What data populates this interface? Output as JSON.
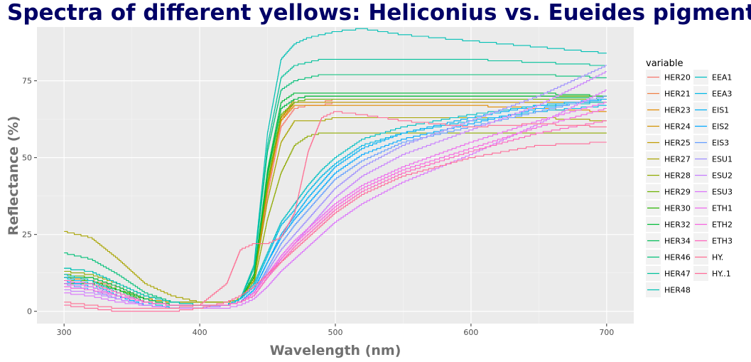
{
  "title": "Spectra of different yellows: Heliconius vs. Eueides pigments",
  "chart_data": {
    "type": "line",
    "xlabel": "Wavelength (nm)",
    "ylabel": "Reflectance (%)",
    "xlim": [
      280,
      720
    ],
    "ylim": [
      -4,
      92.5
    ],
    "x_ticks": [
      300,
      400,
      500,
      600,
      700
    ],
    "y_ticks": [
      0,
      25,
      50,
      75
    ],
    "grid": true,
    "legend": {
      "title": "variable",
      "position": "right",
      "columns": 2
    },
    "x": [
      300,
      320,
      340,
      360,
      380,
      400,
      420,
      430,
      440,
      450,
      460,
      470,
      480,
      490,
      500,
      520,
      550,
      600,
      650,
      700
    ],
    "series": [
      {
        "name": "HER20",
        "color": "#F8766D",
        "values": [
          11,
          10,
          8,
          4,
          3,
          3,
          3,
          4,
          10,
          38,
          60,
          66,
          67,
          67,
          68,
          68,
          68,
          68,
          68,
          68
        ]
      },
      {
        "name": "HER21",
        "color": "#EF7F46",
        "values": [
          9,
          9,
          7,
          4,
          3,
          3,
          3,
          4,
          11,
          40,
          62,
          68,
          68,
          68,
          69,
          69,
          69,
          69,
          69,
          69
        ]
      },
      {
        "name": "HER23",
        "color": "#E28A00",
        "values": [
          10,
          10,
          7,
          4,
          3,
          3,
          3,
          4,
          10,
          40,
          62,
          67,
          67,
          67,
          67,
          67,
          67,
          67,
          66,
          65
        ]
      },
      {
        "name": "HER24",
        "color": "#D39200",
        "values": [
          11,
          10,
          7,
          4,
          3,
          3,
          3,
          4,
          11,
          40,
          63,
          69,
          70,
          70,
          70,
          70,
          70,
          70,
          70,
          70
        ]
      },
      {
        "name": "HER25",
        "color": "#C09B00",
        "values": [
          12,
          11,
          8,
          4,
          3,
          3,
          3,
          4,
          11,
          41,
          63,
          68,
          68,
          68,
          68,
          68,
          68,
          68,
          68,
          68
        ]
      },
      {
        "name": "HER27",
        "color": "#A9A400",
        "values": [
          26,
          24,
          17,
          9,
          5,
          3,
          3,
          4,
          10,
          36,
          55,
          62,
          62,
          62,
          63,
          63,
          63,
          63,
          63,
          62
        ]
      },
      {
        "name": "HER28",
        "color": "#8FAA00",
        "values": [
          13,
          12,
          9,
          5,
          3,
          3,
          3,
          4,
          9,
          30,
          45,
          54,
          57,
          58,
          58,
          58,
          58,
          58,
          58,
          58
        ]
      },
      {
        "name": "HER29",
        "color": "#6BB100",
        "values": [
          12,
          11,
          8,
          4,
          2,
          2,
          2,
          4,
          11,
          42,
          64,
          68,
          69,
          69,
          69,
          69,
          69,
          69,
          69,
          69
        ]
      },
      {
        "name": "HER30",
        "color": "#2AB500",
        "values": [
          10,
          10,
          7,
          4,
          2,
          2,
          2,
          4,
          11,
          44,
          66,
          69,
          70,
          70,
          70,
          70,
          70,
          70,
          70,
          70
        ]
      },
      {
        "name": "HER32",
        "color": "#00BA38",
        "values": [
          9,
          9,
          7,
          3,
          2,
          2,
          2,
          4,
          12,
          46,
          68,
          71,
          71,
          71,
          71,
          71,
          71,
          71,
          71,
          70
        ]
      },
      {
        "name": "HER34",
        "color": "#00BC56",
        "values": [
          11,
          11,
          8,
          4,
          2,
          2,
          2,
          4,
          12,
          45,
          66,
          69,
          70,
          70,
          70,
          70,
          70,
          70,
          70,
          69
        ]
      },
      {
        "name": "HER46",
        "color": "#00BF77",
        "values": [
          19,
          17,
          12,
          6,
          3,
          2,
          2,
          4,
          14,
          52,
          72,
          75,
          76,
          77,
          77,
          77,
          77,
          77,
          77,
          76
        ]
      },
      {
        "name": "HER47",
        "color": "#00C19A",
        "values": [
          14,
          13,
          9,
          5,
          3,
          2,
          2,
          4,
          14,
          54,
          76,
          80,
          81,
          82,
          82,
          82,
          82,
          82,
          81,
          80
        ]
      },
      {
        "name": "HER48",
        "color": "#00C0B5",
        "values": [
          14,
          13,
          9,
          5,
          3,
          2,
          2,
          4,
          15,
          58,
          82,
          87,
          89,
          90,
          91,
          92,
          90,
          88,
          86,
          84
        ]
      },
      {
        "name": "EEA1",
        "color": "#00BFC4",
        "values": [
          12,
          10,
          6,
          3,
          1,
          1,
          2,
          4,
          9,
          19,
          29,
          35,
          41,
          46,
          50,
          56,
          60,
          64,
          67,
          68
        ]
      },
      {
        "name": "EEA3",
        "color": "#00B8E7",
        "values": [
          11,
          9,
          5,
          3,
          1,
          1,
          2,
          4,
          8,
          18,
          28,
          33,
          39,
          44,
          48,
          54,
          58,
          62,
          65,
          67
        ]
      },
      {
        "name": "EIS1",
        "color": "#00B0F6",
        "values": [
          10,
          8,
          5,
          2,
          1,
          1,
          2,
          3,
          7,
          16,
          25,
          31,
          37,
          42,
          47,
          53,
          58,
          63,
          67,
          69
        ]
      },
      {
        "name": "EIS2",
        "color": "#00A9FF",
        "values": [
          10,
          8,
          5,
          2,
          1,
          1,
          2,
          3,
          7,
          16,
          24,
          30,
          35,
          40,
          45,
          51,
          56,
          61,
          66,
          69
        ]
      },
      {
        "name": "EIS3",
        "color": "#619CFF",
        "values": [
          9,
          7,
          4,
          2,
          1,
          1,
          2,
          3,
          6,
          14,
          22,
          28,
          33,
          38,
          43,
          49,
          55,
          60,
          65,
          70
        ]
      },
      {
        "name": "ESU1",
        "color": "#9C8DFF",
        "values": [
          8,
          7,
          4,
          2,
          1,
          1,
          2,
          3,
          6,
          13,
          20,
          25,
          30,
          35,
          40,
          47,
          54,
          62,
          70,
          80
        ]
      },
      {
        "name": "ESU2",
        "color": "#C77CFF",
        "values": [
          7,
          6,
          4,
          2,
          1,
          1,
          2,
          3,
          5,
          11,
          17,
          22,
          27,
          32,
          37,
          44,
          51,
          59,
          67,
          78
        ]
      },
      {
        "name": "ESU3",
        "color": "#DB72FB",
        "values": [
          6,
          5,
          3,
          2,
          1,
          1,
          1,
          2,
          4,
          8,
          13,
          17,
          21,
          25,
          29,
          35,
          42,
          51,
          61,
          72
        ]
      },
      {
        "name": "ETH1",
        "color": "#ED68ED",
        "values": [
          9,
          8,
          5,
          3,
          2,
          2,
          2,
          3,
          6,
          12,
          18,
          23,
          27,
          31,
          35,
          41,
          47,
          55,
          62,
          68
        ]
      },
      {
        "name": "ETH2",
        "color": "#F863DF",
        "values": [
          8,
          7,
          5,
          3,
          2,
          2,
          2,
          3,
          6,
          12,
          17,
          22,
          26,
          30,
          34,
          40,
          46,
          53,
          60,
          66
        ]
      },
      {
        "name": "ETH3",
        "color": "#FF62BC",
        "values": [
          10,
          9,
          6,
          3,
          2,
          2,
          2,
          3,
          5,
          11,
          16,
          21,
          25,
          29,
          33,
          39,
          45,
          52,
          58,
          62
        ]
      },
      {
        "name": "HY.",
        "color": "#FF6C91",
        "values": [
          3,
          2,
          1,
          1,
          1,
          2,
          9,
          20,
          22,
          22,
          24,
          32,
          52,
          63,
          65,
          64,
          62,
          60,
          61,
          60
        ]
      },
      {
        "name": "HY..1",
        "color": "#FF6A98",
        "values": [
          2,
          1,
          0,
          0,
          0,
          1,
          3,
          5,
          8,
          12,
          16,
          20,
          24,
          28,
          32,
          38,
          44,
          50,
          54,
          55
        ]
      }
    ]
  }
}
